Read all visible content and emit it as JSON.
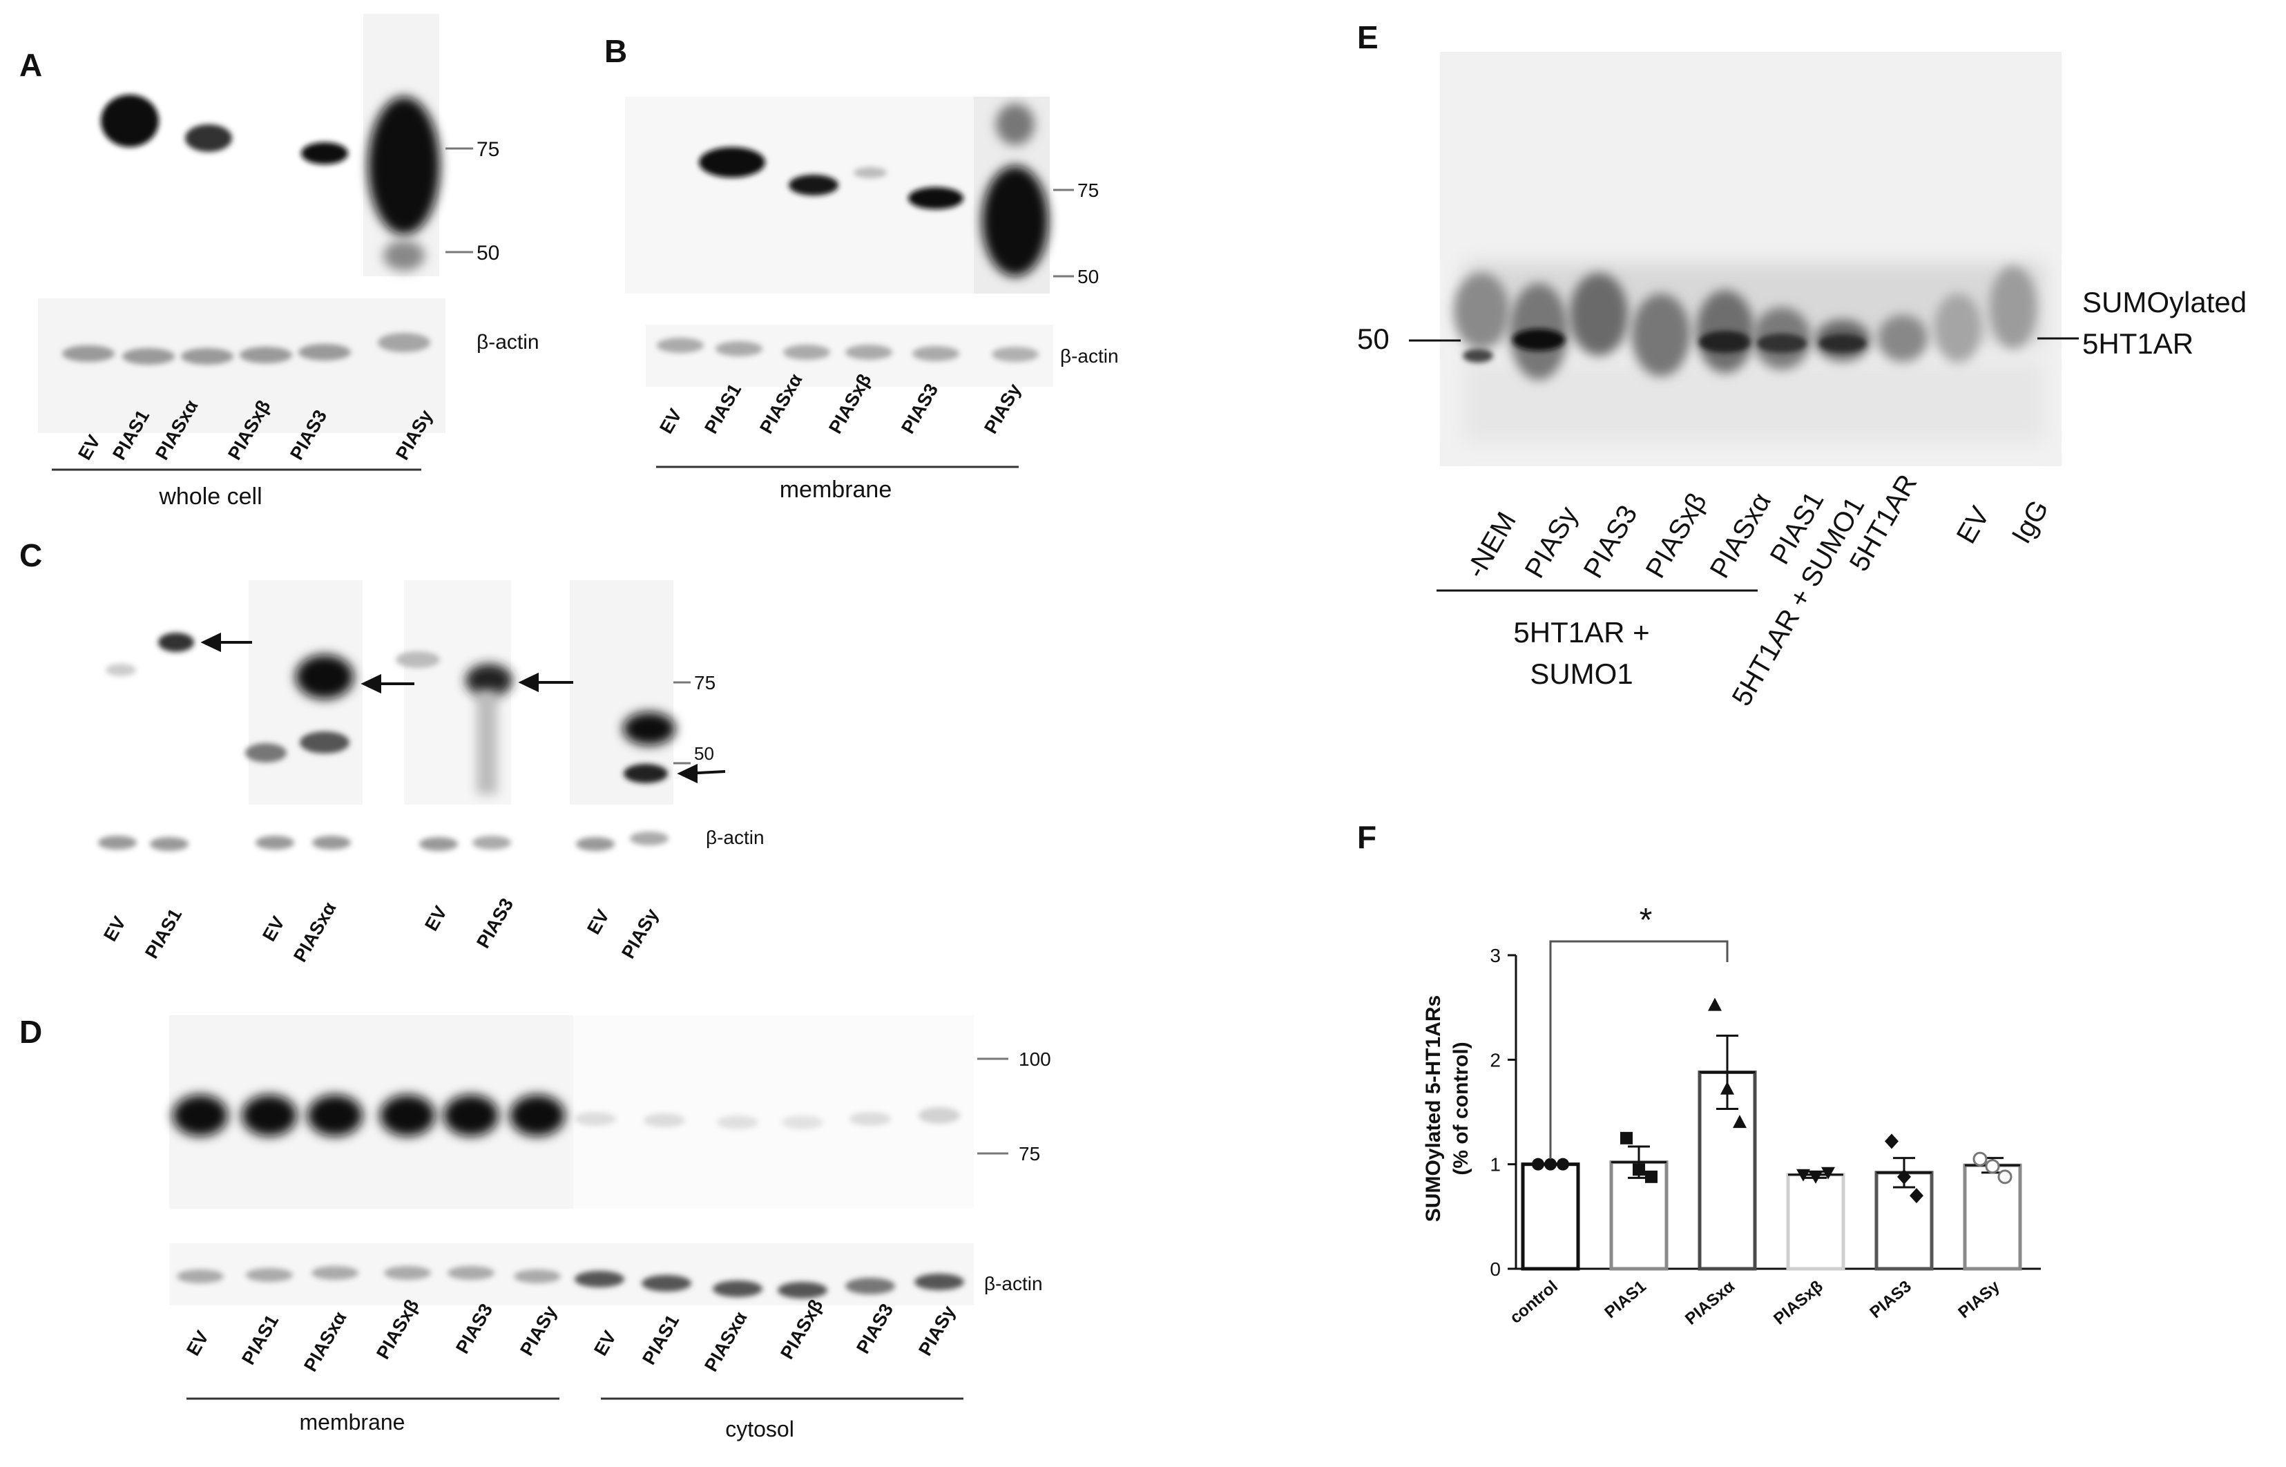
{
  "panels": {
    "A": {
      "label": "A",
      "lanes": [
        "EV",
        "PIAS1",
        "PIASxα",
        "PIASxβ",
        "PIAS3",
        "PIASy"
      ],
      "markers": [
        "75",
        "50"
      ],
      "loading": "β-actin",
      "group": "whole cell"
    },
    "B": {
      "label": "B",
      "lanes": [
        "EV",
        "PIAS1",
        "PIASxα",
        "PIASxβ",
        "PIAS3",
        "PIASy"
      ],
      "markers": [
        "75",
        "50"
      ],
      "loading": "β-actin",
      "group": "membrane"
    },
    "C": {
      "label": "C",
      "lanes": [
        "EV",
        "PIAS1",
        "EV",
        "PIASxα",
        "EV",
        "PIAS3",
        "EV",
        "PIASy"
      ],
      "markers": [
        "75",
        "50"
      ],
      "loading": "β-actin"
    },
    "D": {
      "label": "D",
      "lanes": [
        "EV",
        "PIAS1",
        "PIASxα",
        "PIASxβ",
        "PIAS3",
        "PIASy",
        "EV",
        "PIAS1",
        "PIASxα",
        "PIASxβ",
        "PIAS3",
        "PIASy"
      ],
      "markers": [
        "100",
        "75"
      ],
      "loading": "β-actin",
      "group_membrane": "membrane",
      "group_cytosol": "cytosol"
    },
    "E": {
      "label": "E",
      "lanes": [
        "-NEM",
        "PIASy",
        "PIAS3",
        "PIASxβ",
        "PIASxα",
        "PIAS1",
        "5HT1AR + SUMO1",
        "5HT1AR",
        "EV",
        "IgG"
      ],
      "marker": "50",
      "band_label_1": "SUMOylated",
      "band_label_2": "5HT1AR",
      "group_line1": "5HT1AR +",
      "group_line2": "SUMO1"
    },
    "F": {
      "label": "F"
    }
  },
  "chart_data": {
    "type": "bar",
    "categories": [
      "control",
      "PIAS1",
      "PIASxα",
      "PIASxβ",
      "PIAS3",
      "PIASy"
    ],
    "values": [
      1.0,
      1.02,
      1.88,
      0.9,
      0.92,
      0.99
    ],
    "errors": [
      0.0,
      0.15,
      0.35,
      0.03,
      0.14,
      0.07
    ],
    "points": [
      [
        1.0,
        1.0,
        1.0
      ],
      [
        1.25,
        0.95,
        0.88
      ],
      [
        2.52,
        1.72,
        1.4
      ],
      [
        0.9,
        0.88,
        0.92
      ],
      [
        1.22,
        0.88,
        0.7
      ],
      [
        1.05,
        0.98,
        0.88
      ]
    ],
    "ylabel_line1": "SUMOylated 5-HT1ARs",
    "ylabel_line2": "(% of control)",
    "yticks": [
      "0",
      "1",
      "2",
      "3"
    ],
    "ylim": [
      0,
      3
    ],
    "significance": "*",
    "bar_colors": [
      "#111111",
      "#8a8a8a",
      "#4a4a4a",
      "#cfcfcf",
      "#555555",
      "#8a8a8a"
    ]
  }
}
